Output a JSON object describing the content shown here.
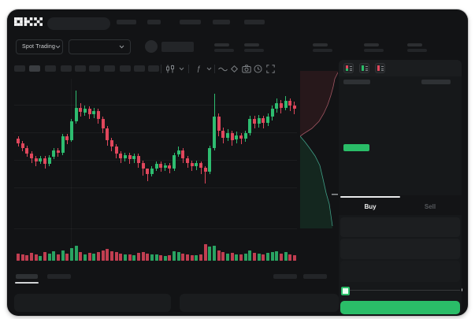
{
  "app": {
    "brand": "OKX",
    "mode_selector_label": "Spot Trading"
  },
  "header": {
    "nav_item_count": 5,
    "search": {
      "value": ""
    }
  },
  "ticker_strip": {
    "stat_pair_count": 5
  },
  "chart_toolbar": {
    "timeframe_button_count": 10,
    "active_timeframe_index": 1,
    "icons": [
      "candle-type",
      "candle-type-chevron",
      "indicators",
      "indicators-chevron",
      "line-tools",
      "eraser",
      "camera",
      "reset-clock",
      "fullscreen"
    ]
  },
  "chart_data": {
    "type": "candlestick",
    "title": "",
    "xlabel": "",
    "ylabel": "",
    "price_scale_note": "no axis labels visible; values are relative 0-100 price units",
    "up_color": "#2ebd70",
    "down_color": "#e0475c",
    "grid": true,
    "candles": [
      [
        53,
        49,
        46,
        55
      ],
      [
        49,
        45,
        42,
        51
      ],
      [
        45,
        40,
        37,
        47
      ],
      [
        40,
        36,
        32,
        42
      ],
      [
        36,
        33,
        29,
        38
      ],
      [
        33,
        36,
        31,
        38
      ],
      [
        36,
        31,
        27,
        38
      ],
      [
        31,
        37,
        29,
        39
      ],
      [
        37,
        43,
        35,
        45
      ],
      [
        43,
        41,
        37,
        45
      ],
      [
        41,
        55,
        39,
        57
      ],
      [
        55,
        52,
        48,
        57
      ],
      [
        52,
        68,
        50,
        70
      ],
      [
        68,
        80,
        66,
        95
      ],
      [
        80,
        76,
        72,
        84
      ],
      [
        76,
        79,
        73,
        82
      ],
      [
        79,
        74,
        70,
        81
      ],
      [
        74,
        77,
        71,
        80
      ],
      [
        77,
        70,
        66,
        79
      ],
      [
        70,
        62,
        58,
        72
      ],
      [
        62,
        52,
        47,
        64
      ],
      [
        52,
        46,
        42,
        54
      ],
      [
        46,
        40,
        36,
        48
      ],
      [
        40,
        36,
        32,
        42
      ],
      [
        36,
        39,
        33,
        41
      ],
      [
        39,
        35,
        31,
        41
      ],
      [
        35,
        38,
        32,
        40
      ],
      [
        38,
        32,
        28,
        40
      ],
      [
        32,
        27,
        21,
        34
      ],
      [
        27,
        22,
        16,
        27
      ],
      [
        22,
        27,
        20,
        29
      ],
      [
        27,
        31,
        25,
        33
      ],
      [
        31,
        28,
        24,
        33
      ],
      [
        28,
        30,
        25,
        32
      ],
      [
        30,
        27,
        23,
        32
      ],
      [
        27,
        39,
        25,
        41
      ],
      [
        39,
        43,
        37,
        46
      ],
      [
        43,
        36,
        32,
        45
      ],
      [
        36,
        32,
        28,
        38
      ],
      [
        32,
        29,
        25,
        34
      ],
      [
        29,
        32,
        26,
        34
      ],
      [
        32,
        28,
        22,
        33
      ],
      [
        28,
        24,
        14,
        29
      ],
      [
        24,
        45,
        22,
        47
      ],
      [
        45,
        72,
        43,
        92
      ],
      [
        72,
        60,
        55,
        75
      ],
      [
        60,
        54,
        49,
        63
      ],
      [
        54,
        58,
        51,
        61
      ],
      [
        58,
        52,
        47,
        60
      ],
      [
        52,
        56,
        49,
        59
      ],
      [
        56,
        53,
        48,
        58
      ],
      [
        53,
        58,
        50,
        60
      ],
      [
        58,
        70,
        56,
        73
      ],
      [
        70,
        66,
        62,
        73
      ],
      [
        66,
        71,
        63,
        74
      ],
      [
        71,
        67,
        62,
        73
      ],
      [
        67,
        72,
        64,
        75
      ],
      [
        72,
        79,
        69,
        82
      ],
      [
        79,
        84,
        76,
        88
      ],
      [
        84,
        80,
        75,
        87
      ],
      [
        80,
        86,
        78,
        90
      ],
      [
        86,
        82,
        77,
        88
      ],
      [
        82,
        79,
        74,
        85
      ]
    ],
    "volumes": [
      40,
      35,
      30,
      45,
      38,
      28,
      50,
      42,
      55,
      35,
      60,
      40,
      75,
      85,
      50,
      38,
      45,
      40,
      52,
      58,
      70,
      55,
      48,
      42,
      35,
      38,
      33,
      45,
      50,
      40,
      38,
      35,
      30,
      28,
      32,
      55,
      48,
      42,
      38,
      33,
      30,
      35,
      95,
      80,
      88,
      60,
      50,
      42,
      45,
      38,
      35,
      40,
      58,
      45,
      42,
      38,
      44,
      50,
      55,
      40,
      48,
      35,
      30
    ]
  },
  "depth_chart": {
    "type": "depth",
    "ask_color": "#e0475c",
    "bid_color": "#2abd68",
    "orientation": "vertical"
  },
  "order_book": {
    "view_icons": [
      "book-combined",
      "book-bids",
      "book-asks"
    ],
    "ask_row_count": 6,
    "bid_row_count": 4,
    "last_price_highlight_color": "#2abd68"
  },
  "trade_panel": {
    "buy_tab_label": "Buy",
    "sell_tab_label": "Sell",
    "form_field_count": 3,
    "slider_steps": 5,
    "buy_button_color": "#2abd68"
  },
  "bottom_bar": {
    "tab_count": 2,
    "active_tab_index": 0,
    "panel_count": 2
  }
}
